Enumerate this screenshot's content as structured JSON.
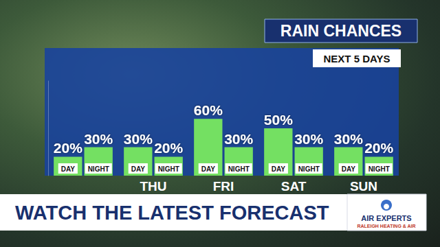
{
  "chart_data": {
    "type": "bar",
    "title": "RAIN CHANCES",
    "subtitle": "NEXT 5 DAYS",
    "categories": [
      null,
      "THU",
      "FRI",
      "SAT",
      "SUN"
    ],
    "series": [
      {
        "name": "DAY",
        "color": "#74e062",
        "values": [
          20,
          30,
          60,
          50,
          30
        ],
        "value_labels": [
          "20%",
          "30%",
          "60%",
          "50%",
          "30%"
        ]
      },
      {
        "name": "NIGHT",
        "color": "#74e062",
        "values": [
          30,
          20,
          30,
          30,
          20
        ],
        "value_labels": [
          "30%",
          "20%",
          "30%",
          "30%",
          "20%"
        ]
      }
    ],
    "ylim": [
      0,
      100
    ],
    "grid": false,
    "tick_labels": false,
    "data_labels": true,
    "annotations": [
      "WATCH THE LATEST FORECAST",
      "AIR EXPERTS",
      "RALEIGH HEATING & AIR"
    ]
  }
}
